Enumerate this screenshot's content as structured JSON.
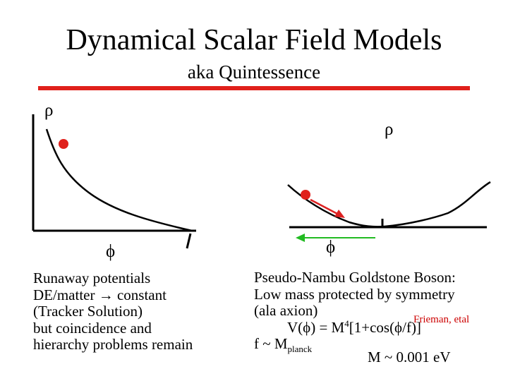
{
  "slide": {
    "title": "Dynamical Scalar Field Models",
    "subtitle": "aka Quintessence"
  },
  "colors": {
    "accent_rule": "#e0201b",
    "ball": "#e0201b",
    "arrow_red": "#dd2222",
    "arrow_green": "#22bb22",
    "axis": "#000000"
  },
  "left_panel": {
    "y_label": "ρ",
    "x_label": "ϕ",
    "lines": [
      "Runaway potentials",
      "DE/matter → constant",
      "(Tracker Solution)",
      "but coincidence and",
      "hierarchy problems  remain"
    ]
  },
  "right_panel": {
    "y_label": "ρ",
    "x_label": "ϕ",
    "line1": "Pseudo-Nambu Goldstone Boson:",
    "line2": "Low mass protected by symmetry",
    "line3": "(ala axion)",
    "credit": "Frieman, etal",
    "formula_prefix": "V(ϕ) = M",
    "formula_exp": "4",
    "formula_suffix": "[1+cos(ϕ/f)]",
    "f_prefix": "f ~ M",
    "f_sub": "planck",
    "m_value": "M ~ 0.001 eV"
  }
}
